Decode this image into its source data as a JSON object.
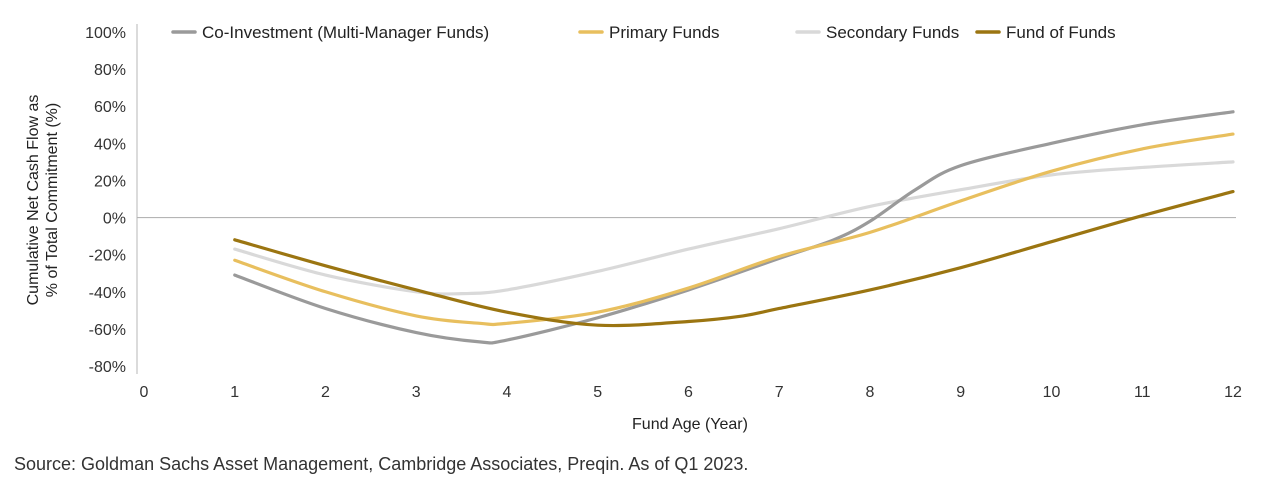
{
  "chart_data": {
    "type": "line",
    "title": "",
    "xlabel": "Fund Age (Year)",
    "ylabel_lines": [
      "Cumulative Net Cash Flow as",
      "% of Total Commitment (%)"
    ],
    "x_ticks": [
      0,
      1,
      2,
      3,
      4,
      5,
      6,
      7,
      8,
      9,
      10,
      11,
      12
    ],
    "x_tick_labels": [
      "0",
      "1",
      "2",
      "3",
      "4",
      "5",
      "6",
      "7",
      "8",
      "9",
      "10",
      "11",
      "12"
    ],
    "xlim": [
      0,
      12
    ],
    "y_ticks": [
      100,
      80,
      60,
      40,
      20,
      0,
      -20,
      -40,
      -60,
      -80
    ],
    "y_tick_labels": [
      "100%",
      "80%",
      "60%",
      "40%",
      "20%",
      "0%",
      "-20%",
      "-40%",
      "-60%",
      "-80%"
    ],
    "ylim": [
      -80,
      100
    ],
    "grid": false,
    "zero_line": true,
    "legend_position": "top",
    "series": [
      {
        "name": "Co-Investment (Multi-Manager Funds)",
        "color": "#9a9a9a",
        "x": [
          1,
          2,
          3,
          3.7,
          4,
          5,
          6,
          7,
          7.6,
          8,
          8.5,
          9,
          10,
          11,
          12
        ],
        "y": [
          -31,
          -49,
          -62,
          -67,
          -66,
          -54,
          -39,
          -22,
          -12,
          -2,
          15,
          28,
          40,
          50,
          57
        ]
      },
      {
        "name": "Primary Funds",
        "color": "#e8bf5e",
        "x": [
          1,
          2,
          3,
          3.7,
          4,
          5,
          6,
          7,
          8,
          9,
          10,
          11,
          12
        ],
        "y": [
          -23,
          -40,
          -53,
          -57,
          -57,
          -51,
          -38,
          -21,
          -8,
          9,
          25,
          37,
          45
        ]
      },
      {
        "name": "Secondary Funds",
        "color": "#d9d9d9",
        "x": [
          1,
          2,
          3,
          3.5,
          4,
          5,
          6,
          7,
          8,
          9,
          10,
          11,
          12
        ],
        "y": [
          -17,
          -31,
          -40,
          -41,
          -39,
          -29,
          -17,
          -6,
          6,
          15,
          23,
          27,
          30
        ]
      },
      {
        "name": "Fund of Funds",
        "color": "#9b7511",
        "x": [
          1,
          2,
          3,
          4,
          5,
          6,
          6.6,
          7,
          8,
          9,
          10,
          11,
          12
        ],
        "y": [
          -12,
          -26,
          -39,
          -51,
          -58,
          -56,
          -53,
          -49,
          -39,
          -27,
          -13,
          1,
          14
        ]
      }
    ]
  },
  "source_label": "Source:",
  "source_text": " Goldman Sachs Asset Management, Cambridge Associates, Preqin. As of Q1 2023."
}
